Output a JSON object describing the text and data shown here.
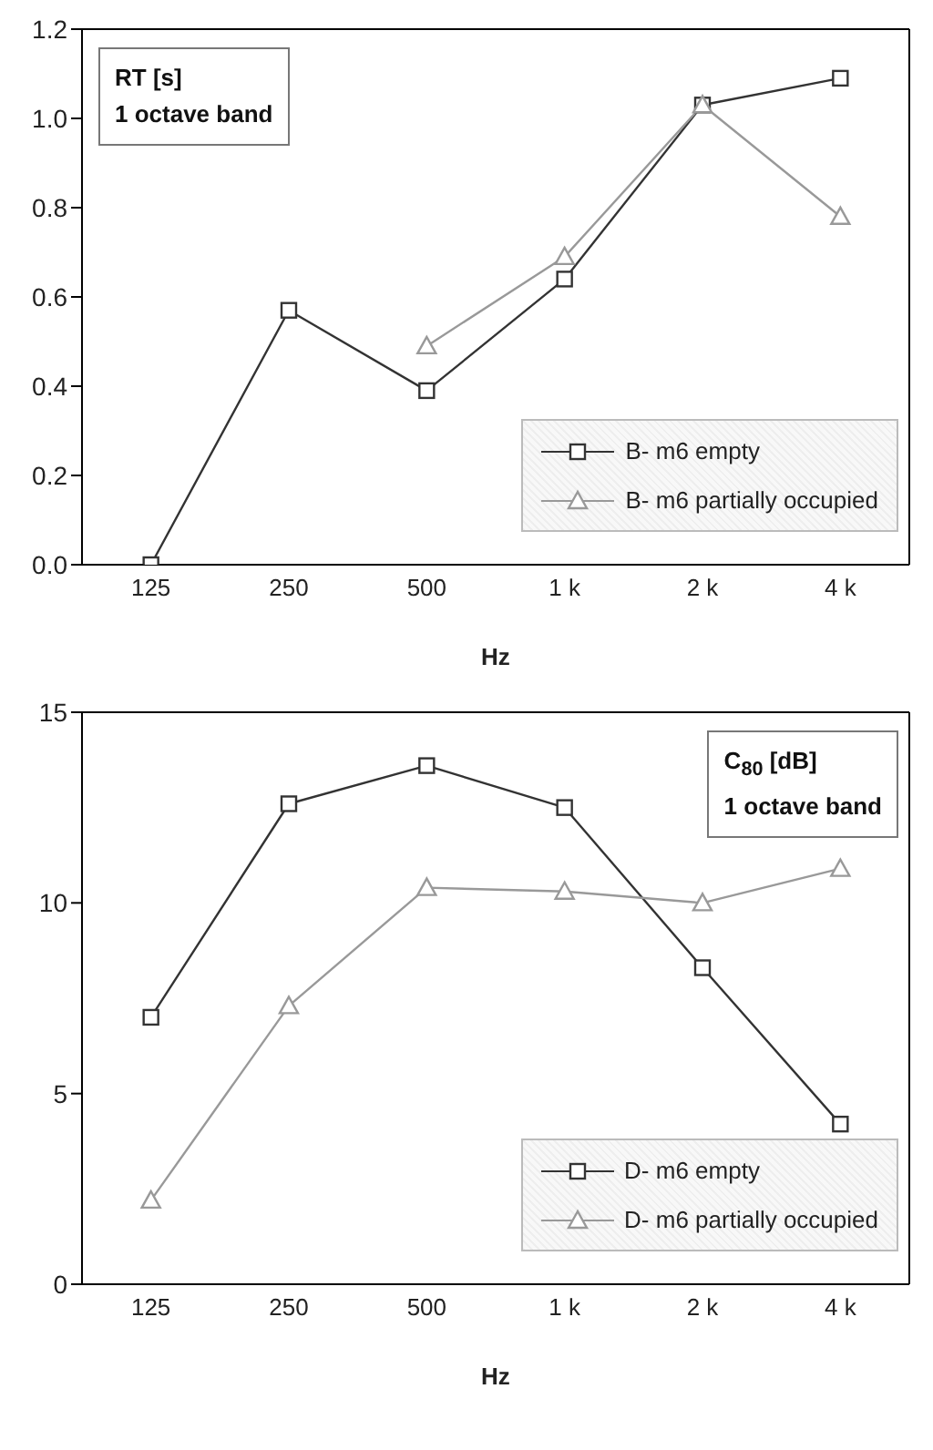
{
  "chart_data": [
    {
      "type": "line",
      "categories": [
        "125",
        "250",
        "500",
        "1 k",
        "2 k",
        "4 k"
      ],
      "xlabel": "Hz",
      "annotations": [
        "RT [s]",
        "1 octave band"
      ],
      "ylim": [
        0,
        1.2
      ],
      "yticks": [
        {
          "value": 0,
          "label": "0.0"
        },
        {
          "value": 0.2,
          "label": "0.2"
        },
        {
          "value": 0.4,
          "label": "0.4"
        },
        {
          "value": 0.6,
          "label": "0.6"
        },
        {
          "value": 0.8,
          "label": "0.8"
        },
        {
          "value": 1,
          "label": "1.0"
        },
        {
          "value": 1.2,
          "label": "1.2"
        }
      ],
      "grid": false,
      "legend": "bottom right",
      "line_style": "solid",
      "series": [
        {
          "name": "B- m6 empty",
          "color": "#333333",
          "marker": "square",
          "values": [
            0.0,
            0.57,
            0.39,
            0.64,
            1.03,
            1.09
          ]
        },
        {
          "name": "B- m6 partially occupied",
          "color": "#999999",
          "marker": "triangle",
          "values": [
            null,
            null,
            0.49,
            0.69,
            1.03,
            0.78
          ]
        }
      ]
    },
    {
      "type": "line",
      "categories": [
        "125",
        "250",
        "500",
        "1 k",
        "2 k",
        "4 k"
      ],
      "xlabel": "Hz",
      "annotations": [
        "C$_{80}$ [dB]",
        "1 octave band"
      ],
      "ylim": [
        0,
        15
      ],
      "yticks": [
        0,
        5,
        10,
        15
      ],
      "grid": false,
      "legend": "bottom right",
      "line_style": "solid",
      "series": [
        {
          "name": "D- m6 empty",
          "color": "#333333",
          "marker": "square",
          "values": [
            7.0,
            12.6,
            13.6,
            12.5,
            8.3,
            4.2
          ]
        },
        {
          "name": "D- m6 partially occupied",
          "color": "#999999",
          "marker": "triangle",
          "values": [
            2.2,
            7.3,
            10.4,
            10.3,
            10.0,
            10.9
          ]
        }
      ]
    }
  ]
}
